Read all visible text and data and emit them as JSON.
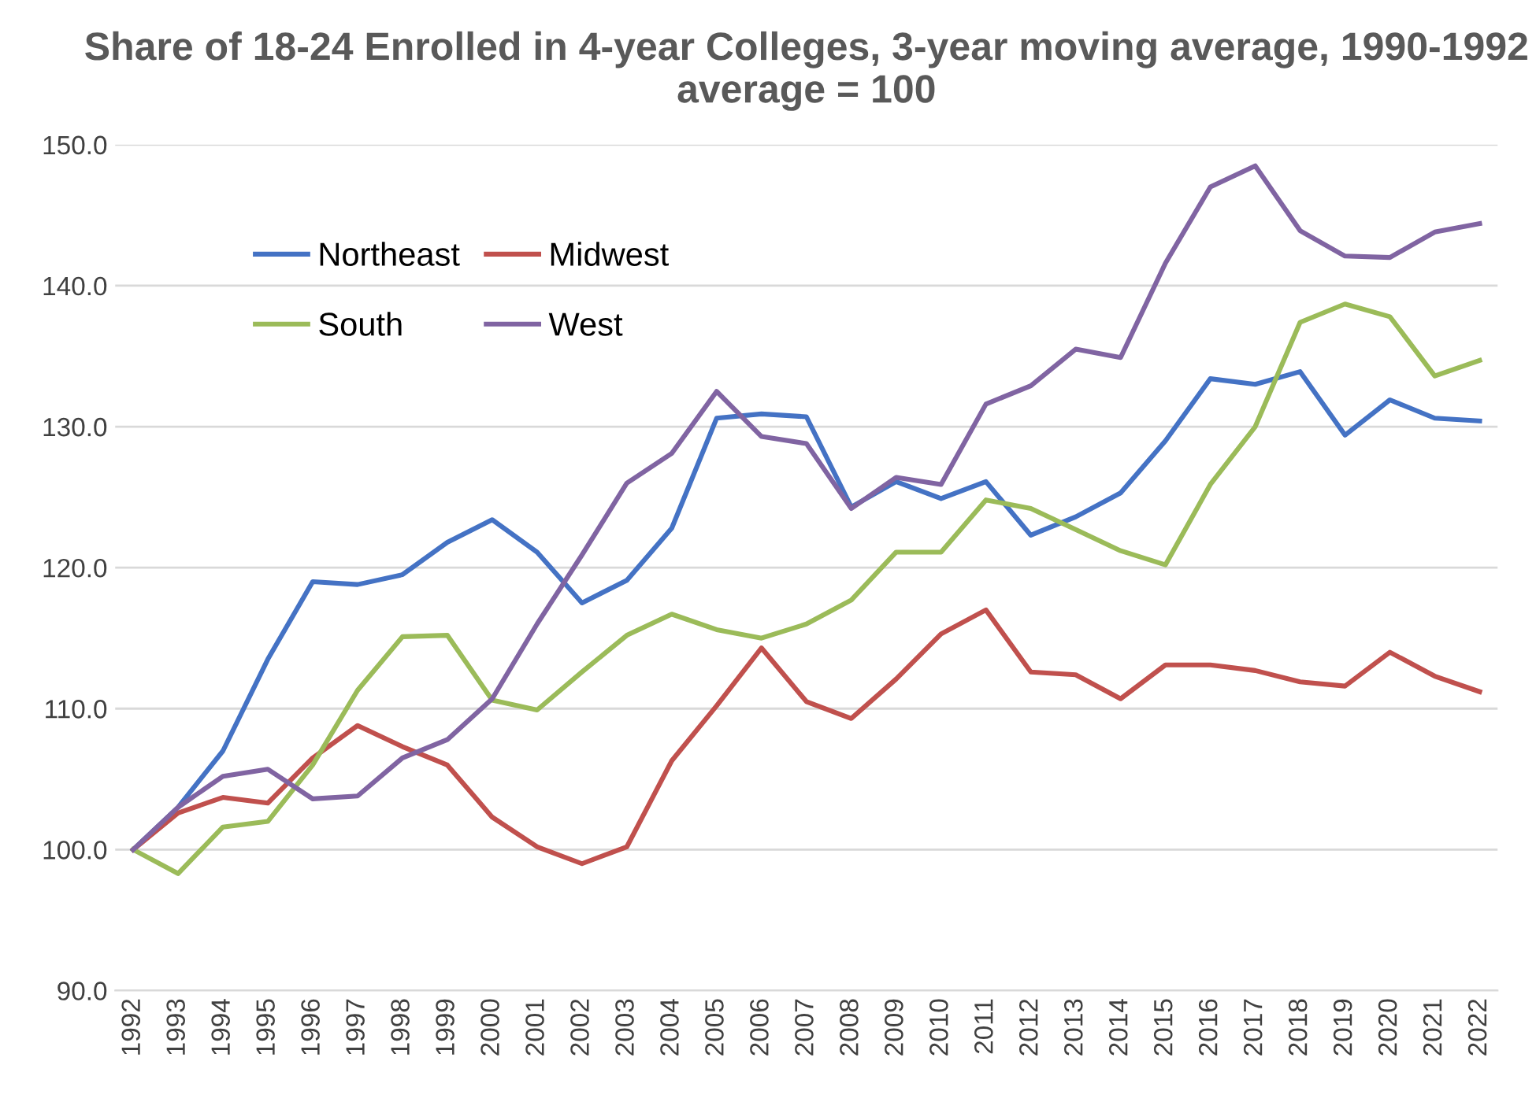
{
  "chart_data": {
    "type": "line",
    "title": "Share of 18-24 Enrolled in 4-year Colleges, 3-year moving average, 1990-1992 average = 100",
    "categories": [
      "1992",
      "1993",
      "1994",
      "1995",
      "1996",
      "1997",
      "1998",
      "1999",
      "2000",
      "2001",
      "2002",
      "2003",
      "2004",
      "2005",
      "2006",
      "2007",
      "2008",
      "2009",
      "2010",
      "2011",
      "2012",
      "2013",
      "2014",
      "2015",
      "2016",
      "2017",
      "2018",
      "2019",
      "2020",
      "2021",
      "2022"
    ],
    "series": [
      {
        "name": "Northeast",
        "color": "#4472c4",
        "values": [
          100,
          103,
          107,
          113.5,
          119,
          118.8,
          119.5,
          121.8,
          123.4,
          121.1,
          117.5,
          119.1,
          122.8,
          130.6,
          130.9,
          130.7,
          124.3,
          126.1,
          124.9,
          126.1,
          122.3,
          123.6,
          125.3,
          129.0,
          133.4,
          133.0,
          133.9,
          129.4,
          131.9,
          130.6,
          130.4
        ]
      },
      {
        "name": "Midwest",
        "color": "#c0504d",
        "values": [
          100,
          102.6,
          103.7,
          103.3,
          106.5,
          108.8,
          107.3,
          106.0,
          102.3,
          100.2,
          99.0,
          100.2,
          106.3,
          110.2,
          114.3,
          110.5,
          109.3,
          112.1,
          115.3,
          117.0,
          112.6,
          112.4,
          110.7,
          113.1,
          113.1,
          112.7,
          111.9,
          111.6,
          114.0,
          112.3,
          111.2
        ]
      },
      {
        "name": "South",
        "color": "#9bbb59",
        "values": [
          100,
          98.3,
          101.6,
          102.0,
          106.0,
          111.3,
          115.1,
          115.2,
          110.6,
          109.9,
          112.6,
          115.2,
          116.7,
          115.6,
          115.0,
          116.0,
          117.7,
          121.1,
          121.1,
          124.8,
          124.2,
          122.7,
          121.2,
          120.2,
          125.9,
          130.0,
          137.4,
          138.7,
          137.8,
          133.6,
          134.7
        ]
      },
      {
        "name": "West",
        "color": "#8064a2",
        "values": [
          100,
          103.0,
          105.2,
          105.7,
          103.6,
          103.8,
          106.5,
          107.8,
          110.7,
          116.0,
          120.9,
          126.0,
          128.1,
          132.5,
          129.3,
          128.8,
          124.2,
          126.4,
          125.9,
          131.6,
          132.9,
          135.5,
          134.9,
          141.6,
          147.0,
          148.5,
          143.9,
          142.1,
          142.0,
          143.8,
          144.4
        ]
      }
    ],
    "ylim": [
      90,
      150
    ],
    "yticks": [
      {
        "value": 90,
        "label": "90.0"
      },
      {
        "value": 100,
        "label": "100.0"
      },
      {
        "value": 110,
        "label": "110.0"
      },
      {
        "value": 120,
        "label": "120.0"
      },
      {
        "value": 130,
        "label": "130.0"
      },
      {
        "value": 140,
        "label": "140.0"
      },
      {
        "value": 150,
        "label": "150.0"
      }
    ],
    "grid": "y",
    "legend": "top left",
    "marker": "none",
    "line_style": "solid"
  }
}
